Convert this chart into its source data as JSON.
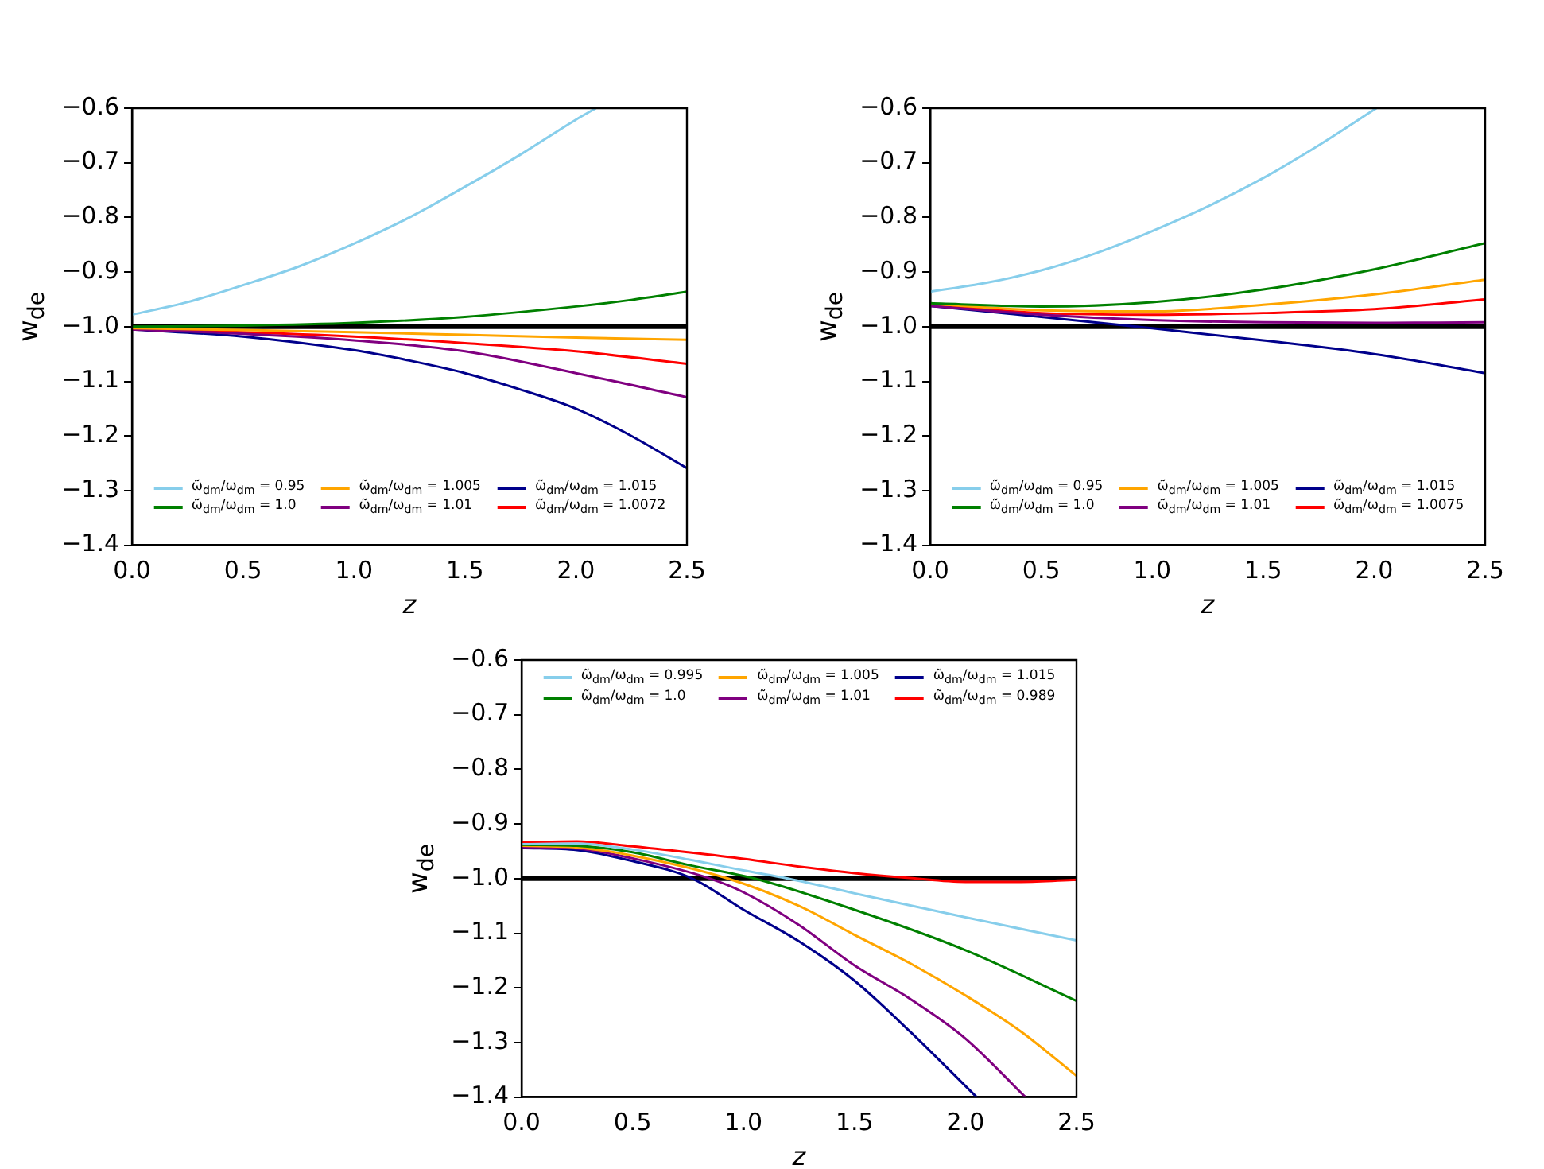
{
  "chart_data": [
    {
      "type": "line",
      "xlabel": "z",
      "ylabel": "w$_{de}$",
      "xlim": [
        0,
        2.5
      ],
      "ylim": [
        -1.4,
        -0.6
      ],
      "xticks": [
        {
          "value": 0,
          "label": "0.0"
        },
        {
          "value": 0.5,
          "label": "0.5"
        },
        {
          "value": 1,
          "label": "1.0"
        },
        {
          "value": 1.5,
          "label": "1.5"
        },
        {
          "value": 2,
          "label": "2.0"
        },
        {
          "value": 2.5,
          "label": "2.5"
        }
      ],
      "yticks": [
        {
          "value": -1.4,
          "label": "−1.4"
        },
        {
          "value": -1.3,
          "label": "−1.3"
        },
        {
          "value": -1.2,
          "label": "−1.2"
        },
        {
          "value": -1.1,
          "label": "−1.1"
        },
        {
          "value": -1.0,
          "label": "−1.0"
        },
        {
          "value": -0.9,
          "label": "−0.9"
        },
        {
          "value": -0.8,
          "label": "−0.8"
        },
        {
          "value": -0.7,
          "label": "−0.7"
        },
        {
          "value": -0.6,
          "label": "−0.6"
        }
      ],
      "legend": "bottom",
      "grid": false,
      "marker": "none",
      "line_style": "solid",
      "ref_lines": [
        {
          "axis": "y",
          "value": -1.0,
          "color": "#000000"
        }
      ],
      "series": [
        {
          "name": "ω̃$_{dm}$/ω$_{dm}$ = 0.95",
          "color": "#87ceeb",
          "x": [
            0,
            0.25,
            0.5,
            0.75,
            1.0,
            1.25,
            1.5,
            1.75,
            2.0,
            2.09
          ],
          "values": [
            -0.978,
            -0.955,
            -0.924,
            -0.89,
            -0.848,
            -0.8,
            -0.744,
            -0.685,
            -0.621,
            -0.6
          ]
        },
        {
          "name": "ω̃$_{dm}$/ω$_{dm}$ = 1.0",
          "color": "#008000",
          "x": [
            0,
            0.5,
            1.0,
            1.5,
            2.0,
            2.25,
            2.5
          ],
          "values": [
            -1.0,
            -0.998,
            -0.993,
            -0.982,
            -0.963,
            -0.951,
            -0.936
          ]
        },
        {
          "name": "ω̃$_{dm}$/ω$_{dm}$ = 1.005",
          "color": "#ffa500",
          "x": [
            0,
            0.5,
            1.0,
            1.5,
            2.0,
            2.5
          ],
          "values": [
            -1.003,
            -1.006,
            -1.01,
            -1.015,
            -1.02,
            -1.024
          ]
        },
        {
          "name": "ω̃$_{dm}$/ω$_{dm}$ = 1.01",
          "color": "#800080",
          "x": [
            0,
            0.5,
            1.0,
            1.5,
            2.0,
            2.5
          ],
          "values": [
            -1.005,
            -1.013,
            -1.025,
            -1.045,
            -1.085,
            -1.129
          ]
        },
        {
          "name": "ω̃$_{dm}$/ω$_{dm}$ = 1.015",
          "color": "#00008b",
          "x": [
            0,
            0.5,
            1.0,
            1.25,
            1.5,
            1.75,
            2.0,
            2.25,
            2.5
          ],
          "values": [
            -1.005,
            -1.018,
            -1.043,
            -1.062,
            -1.085,
            -1.115,
            -1.15,
            -1.2,
            -1.259
          ]
        },
        {
          "name": "ω̃$_{dm}$/ω$_{dm}$ = 1.0072",
          "color": "#ff0000",
          "x": [
            0,
            0.5,
            1.0,
            1.5,
            2.0,
            2.5
          ],
          "values": [
            -1.005,
            -1.01,
            -1.018,
            -1.03,
            -1.045,
            -1.068
          ]
        }
      ]
    },
    {
      "type": "line",
      "xlabel": "z",
      "ylabel": "w$_{de}$",
      "xlim": [
        0,
        2.5
      ],
      "ylim": [
        -1.4,
        -0.6
      ],
      "xticks": [
        {
          "value": 0,
          "label": "0.0"
        },
        {
          "value": 0.5,
          "label": "0.5"
        },
        {
          "value": 1,
          "label": "1.0"
        },
        {
          "value": 1.5,
          "label": "1.5"
        },
        {
          "value": 2,
          "label": "2.0"
        },
        {
          "value": 2.5,
          "label": "2.5"
        }
      ],
      "yticks": [
        {
          "value": -1.4,
          "label": "−1.4"
        },
        {
          "value": -1.3,
          "label": "−1.3"
        },
        {
          "value": -1.2,
          "label": "−1.2"
        },
        {
          "value": -1.1,
          "label": "−1.1"
        },
        {
          "value": -1.0,
          "label": "−1.0"
        },
        {
          "value": -0.9,
          "label": "−0.9"
        },
        {
          "value": -0.8,
          "label": "−0.8"
        },
        {
          "value": -0.7,
          "label": "−0.7"
        },
        {
          "value": -0.6,
          "label": "−0.6"
        }
      ],
      "legend": "bottom",
      "grid": false,
      "marker": "none",
      "line_style": "solid",
      "ref_lines": [
        {
          "axis": "y",
          "value": -1.0,
          "color": "#000000"
        }
      ],
      "series": [
        {
          "name": "ω̃$_{dm}$/ω$_{dm}$ = 0.95",
          "color": "#87ceeb",
          "x": [
            0,
            0.25,
            0.5,
            0.75,
            1.0,
            1.25,
            1.5,
            1.75,
            2.01
          ],
          "values": [
            -0.936,
            -0.92,
            -0.897,
            -0.865,
            -0.825,
            -0.78,
            -0.728,
            -0.668,
            -0.6
          ]
        },
        {
          "name": "ω̃$_{dm}$/ω$_{dm}$ = 1.0",
          "color": "#008000",
          "x": [
            0,
            0.5,
            1.0,
            1.5,
            2.0,
            2.5
          ],
          "values": [
            -0.957,
            -0.963,
            -0.955,
            -0.932,
            -0.895,
            -0.847
          ]
        },
        {
          "name": "ω̃$_{dm}$/ω$_{dm}$ = 1.005",
          "color": "#ffa500",
          "x": [
            0,
            0.5,
            1.0,
            1.5,
            2.0,
            2.5
          ],
          "values": [
            -0.958,
            -0.97,
            -0.972,
            -0.96,
            -0.941,
            -0.914
          ]
        },
        {
          "name": "ω̃$_{dm}$/ω$_{dm}$ = 1.01",
          "color": "#800080",
          "x": [
            0,
            0.5,
            1.0,
            1.5,
            2.0,
            2.5
          ],
          "values": [
            -0.962,
            -0.978,
            -0.988,
            -0.992,
            -0.993,
            -0.992
          ]
        },
        {
          "name": "ω̃$_{dm}$/ω$_{dm}$ = 1.015",
          "color": "#00008b",
          "x": [
            0,
            0.5,
            1.0,
            1.5,
            2.0,
            2.5
          ],
          "values": [
            -0.962,
            -0.982,
            -1.003,
            -1.025,
            -1.05,
            -1.085
          ]
        },
        {
          "name": "ω̃$_{dm}$/ω$_{dm}$ = 1.0075",
          "color": "#ff0000",
          "x": [
            0,
            0.5,
            1.0,
            1.5,
            2.0,
            2.5
          ],
          "values": [
            -0.96,
            -0.975,
            -0.978,
            -0.975,
            -0.968,
            -0.95
          ]
        }
      ]
    },
    {
      "type": "line",
      "xlabel": "z",
      "ylabel": "w$_{de}$",
      "xlim": [
        0,
        2.5
      ],
      "ylim": [
        -1.4,
        -0.6
      ],
      "xticks": [
        {
          "value": 0,
          "label": "0.0"
        },
        {
          "value": 0.5,
          "label": "0.5"
        },
        {
          "value": 1,
          "label": "1.0"
        },
        {
          "value": 1.5,
          "label": "1.5"
        },
        {
          "value": 2,
          "label": "2.0"
        },
        {
          "value": 2.5,
          "label": "2.5"
        }
      ],
      "yticks": [
        {
          "value": -1.4,
          "label": "−1.4"
        },
        {
          "value": -1.3,
          "label": "−1.3"
        },
        {
          "value": -1.2,
          "label": "−1.2"
        },
        {
          "value": -1.1,
          "label": "−1.1"
        },
        {
          "value": -1.0,
          "label": "−1.0"
        },
        {
          "value": -0.9,
          "label": "−0.9"
        },
        {
          "value": -0.8,
          "label": "−0.8"
        },
        {
          "value": -0.7,
          "label": "−0.7"
        },
        {
          "value": -0.6,
          "label": "−0.6"
        }
      ],
      "legend": "top",
      "grid": false,
      "marker": "none",
      "line_style": "solid",
      "ref_lines": [
        {
          "axis": "y",
          "value": -1.0,
          "color": "#000000"
        }
      ],
      "series": [
        {
          "name": "ω̃$_{dm}$/ω$_{dm}$ = 0.995",
          "color": "#87ceeb",
          "x": [
            0,
            0.25,
            0.5,
            0.75,
            1.0,
            1.2,
            1.5,
            2.0,
            2.5
          ],
          "values": [
            -0.937,
            -0.936,
            -0.947,
            -0.965,
            -0.985,
            -1.0,
            -1.027,
            -1.071,
            -1.113
          ]
        },
        {
          "name": "ω̃$_{dm}$/ω$_{dm}$ = 1.0",
          "color": "#008000",
          "x": [
            0,
            0.25,
            0.5,
            0.75,
            1.05,
            1.5,
            2.0,
            2.5
          ],
          "values": [
            -0.938,
            -0.94,
            -0.952,
            -0.975,
            -1.0,
            -1.057,
            -1.131,
            -1.224
          ]
        },
        {
          "name": "ω̃$_{dm}$/ω$_{dm}$ = 1.005",
          "color": "#ffa500",
          "x": [
            0,
            0.25,
            0.5,
            0.93,
            1.25,
            1.5,
            1.75,
            2.0,
            2.25,
            2.5
          ],
          "values": [
            -0.94,
            -0.943,
            -0.958,
            -1.0,
            -1.05,
            -1.103,
            -1.155,
            -1.214,
            -1.28,
            -1.361
          ]
        },
        {
          "name": "ω̃$_{dm}$/ω$_{dm}$ = 1.01",
          "color": "#800080",
          "x": [
            0,
            0.25,
            0.5,
            0.85,
            1.0,
            1.25,
            1.5,
            1.75,
            2.0,
            2.27
          ],
          "values": [
            -0.942,
            -0.945,
            -0.963,
            -1.0,
            -1.025,
            -1.085,
            -1.159,
            -1.22,
            -1.293,
            -1.4
          ]
        },
        {
          "name": "ω̃$_{dm}$/ω$_{dm}$ = 1.015",
          "color": "#00008b",
          "x": [
            0,
            0.25,
            0.5,
            0.77,
            1.0,
            1.25,
            1.5,
            1.75,
            2.05
          ],
          "values": [
            -0.944,
            -0.948,
            -0.968,
            -1.0,
            -1.057,
            -1.115,
            -1.187,
            -1.28,
            -1.4
          ]
        },
        {
          "name": "ω̃$_{dm}$/ω$_{dm}$ = 0.989",
          "color": "#ff0000",
          "x": [
            0,
            0.25,
            0.5,
            0.75,
            1.0,
            1.25,
            1.5,
            1.75,
            2.0,
            2.25,
            2.5
          ],
          "values": [
            -0.934,
            -0.932,
            -0.941,
            -0.952,
            -0.964,
            -0.978,
            -0.99,
            -0.999,
            -1.006,
            -1.006,
            -1.002
          ]
        }
      ]
    }
  ]
}
